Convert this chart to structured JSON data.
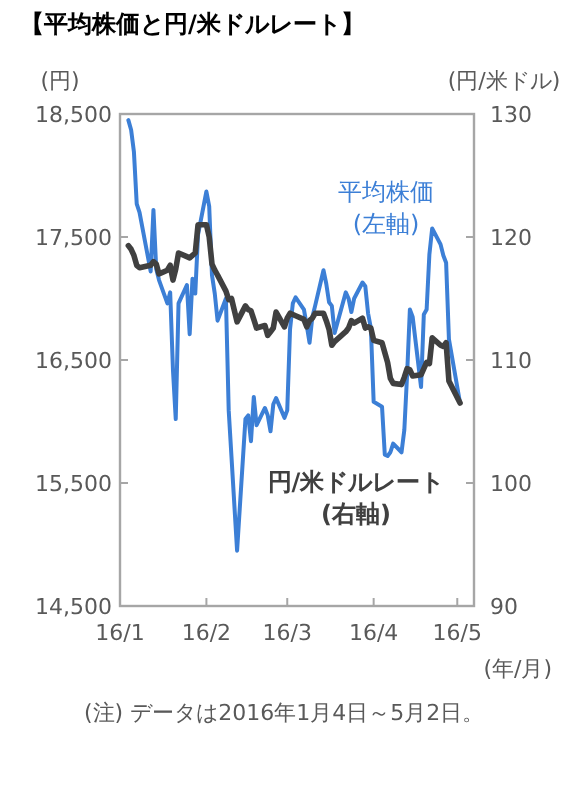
{
  "chart_data": {
    "type": "line",
    "title": "【平均株価と円/米ドルレート】",
    "ylabel": "(円)",
    "y2label": "(円/米ドル)",
    "xlabel": "(年/月)",
    "annotations": [
      "(注) データは2016年1月4日～5月2日。"
    ],
    "x": [
      "2016-01-04",
      "2016-01-05",
      "2016-01-06",
      "2016-01-07",
      "2016-01-08",
      "2016-01-12",
      "2016-01-13",
      "2016-01-14",
      "2016-01-15",
      "2016-01-18",
      "2016-01-19",
      "2016-01-20",
      "2016-01-21",
      "2016-01-22",
      "2016-01-25",
      "2016-01-26",
      "2016-01-27",
      "2016-01-28",
      "2016-01-29",
      "2016-02-01",
      "2016-02-02",
      "2016-02-03",
      "2016-02-04",
      "2016-02-05",
      "2016-02-08",
      "2016-02-09",
      "2016-02-10",
      "2016-02-12",
      "2016-02-15",
      "2016-02-16",
      "2016-02-17",
      "2016-02-18",
      "2016-02-19",
      "2016-02-22",
      "2016-02-23",
      "2016-02-24",
      "2016-02-25",
      "2016-02-26",
      "2016-02-29",
      "2016-03-01",
      "2016-03-02",
      "2016-03-03",
      "2016-03-04",
      "2016-03-07",
      "2016-03-08",
      "2016-03-09",
      "2016-03-10",
      "2016-03-11",
      "2016-03-14",
      "2016-03-15",
      "2016-03-16",
      "2016-03-17",
      "2016-03-18",
      "2016-03-22",
      "2016-03-23",
      "2016-03-24",
      "2016-03-25",
      "2016-03-28",
      "2016-03-29",
      "2016-03-30",
      "2016-03-31",
      "2016-04-01",
      "2016-04-04",
      "2016-04-05",
      "2016-04-06",
      "2016-04-07",
      "2016-04-08",
      "2016-04-11",
      "2016-04-12",
      "2016-04-13",
      "2016-04-14",
      "2016-04-15",
      "2016-04-18",
      "2016-04-19",
      "2016-04-20",
      "2016-04-21",
      "2016-04-22",
      "2016-04-25",
      "2016-04-26",
      "2016-04-27",
      "2016-04-28",
      "2016-05-02"
    ],
    "series": [
      {
        "name": "平均株価(左軸)",
        "color": "#3c7fd6",
        "axis": "y",
        "values": [
          18450,
          18370,
          18190,
          17770,
          17700,
          17220,
          17720,
          17240,
          17150,
          16960,
          17050,
          16420,
          16020,
          16960,
          17110,
          16710,
          17160,
          17040,
          17520,
          17870,
          17750,
          17190,
          17040,
          16820,
          17000,
          16090,
          15710,
          14950,
          16020,
          16050,
          15840,
          16200,
          15970,
          16110,
          16050,
          15920,
          16140,
          16190,
          16030,
          16090,
          16750,
          16960,
          17010,
          16910,
          16780,
          16640,
          16850,
          16940,
          17230,
          17120,
          16970,
          16940,
          16720,
          17050,
          17000,
          16890,
          17000,
          17130,
          17100,
          16880,
          16760,
          16160,
          16120,
          15730,
          15720,
          15750,
          15820,
          15750,
          15930,
          16380,
          16910,
          16850,
          16280,
          16870,
          16910,
          17360,
          17570,
          17440,
          17350,
          17290,
          16670,
          16150
        ]
      },
      {
        "name": "円/米ドルレート(右軸)",
        "color": "#404040",
        "axis": "y2",
        "values": [
          119.3,
          119.0,
          118.5,
          117.7,
          117.5,
          117.7,
          118.0,
          117.8,
          117.0,
          117.3,
          117.7,
          116.5,
          117.4,
          118.7,
          118.4,
          118.3,
          118.5,
          118.7,
          121.0,
          121.0,
          120.0,
          117.8,
          117.3,
          116.9,
          115.6,
          114.9,
          115.0,
          113.1,
          114.4,
          114.1,
          114.0,
          113.3,
          112.6,
          112.8,
          112.0,
          112.3,
          112.6,
          113.9,
          112.7,
          113.4,
          113.8,
          113.7,
          113.6,
          113.3,
          112.7,
          113.2,
          113.4,
          113.8,
          113.8,
          113.2,
          112.5,
          111.2,
          111.5,
          112.3,
          112.6,
          113.2,
          113.0,
          113.4,
          112.6,
          112.7,
          112.6,
          111.6,
          111.4,
          110.6,
          109.8,
          108.5,
          108.1,
          108.0,
          108.6,
          109.3,
          109.2,
          108.7,
          108.8,
          109.3,
          109.8,
          109.7,
          111.8,
          111.2,
          111.1,
          111.4,
          108.3,
          106.5
        ]
      }
    ],
    "xlim": [
      "2016-01-01",
      "2016-05-07"
    ],
    "xticks": [
      {
        "value": "2016-01-01",
        "label": "16/1"
      },
      {
        "value": "2016-02-01",
        "label": "16/2"
      },
      {
        "value": "2016-03-01",
        "label": "16/3"
      },
      {
        "value": "2016-04-01",
        "label": "16/4"
      },
      {
        "value": "2016-05-01",
        "label": "16/5"
      }
    ],
    "ylim": [
      14500,
      18500
    ],
    "yticks": [
      {
        "value": 14500,
        "label": "14,500"
      },
      {
        "value": 15500,
        "label": "15,500"
      },
      {
        "value": 16500,
        "label": "16,500"
      },
      {
        "value": 17500,
        "label": "17,500"
      },
      {
        "value": 18500,
        "label": "18,500"
      }
    ],
    "y2lim": [
      90,
      130
    ],
    "y2ticks": [
      90,
      100,
      110,
      120,
      130
    ],
    "grid": false
  }
}
